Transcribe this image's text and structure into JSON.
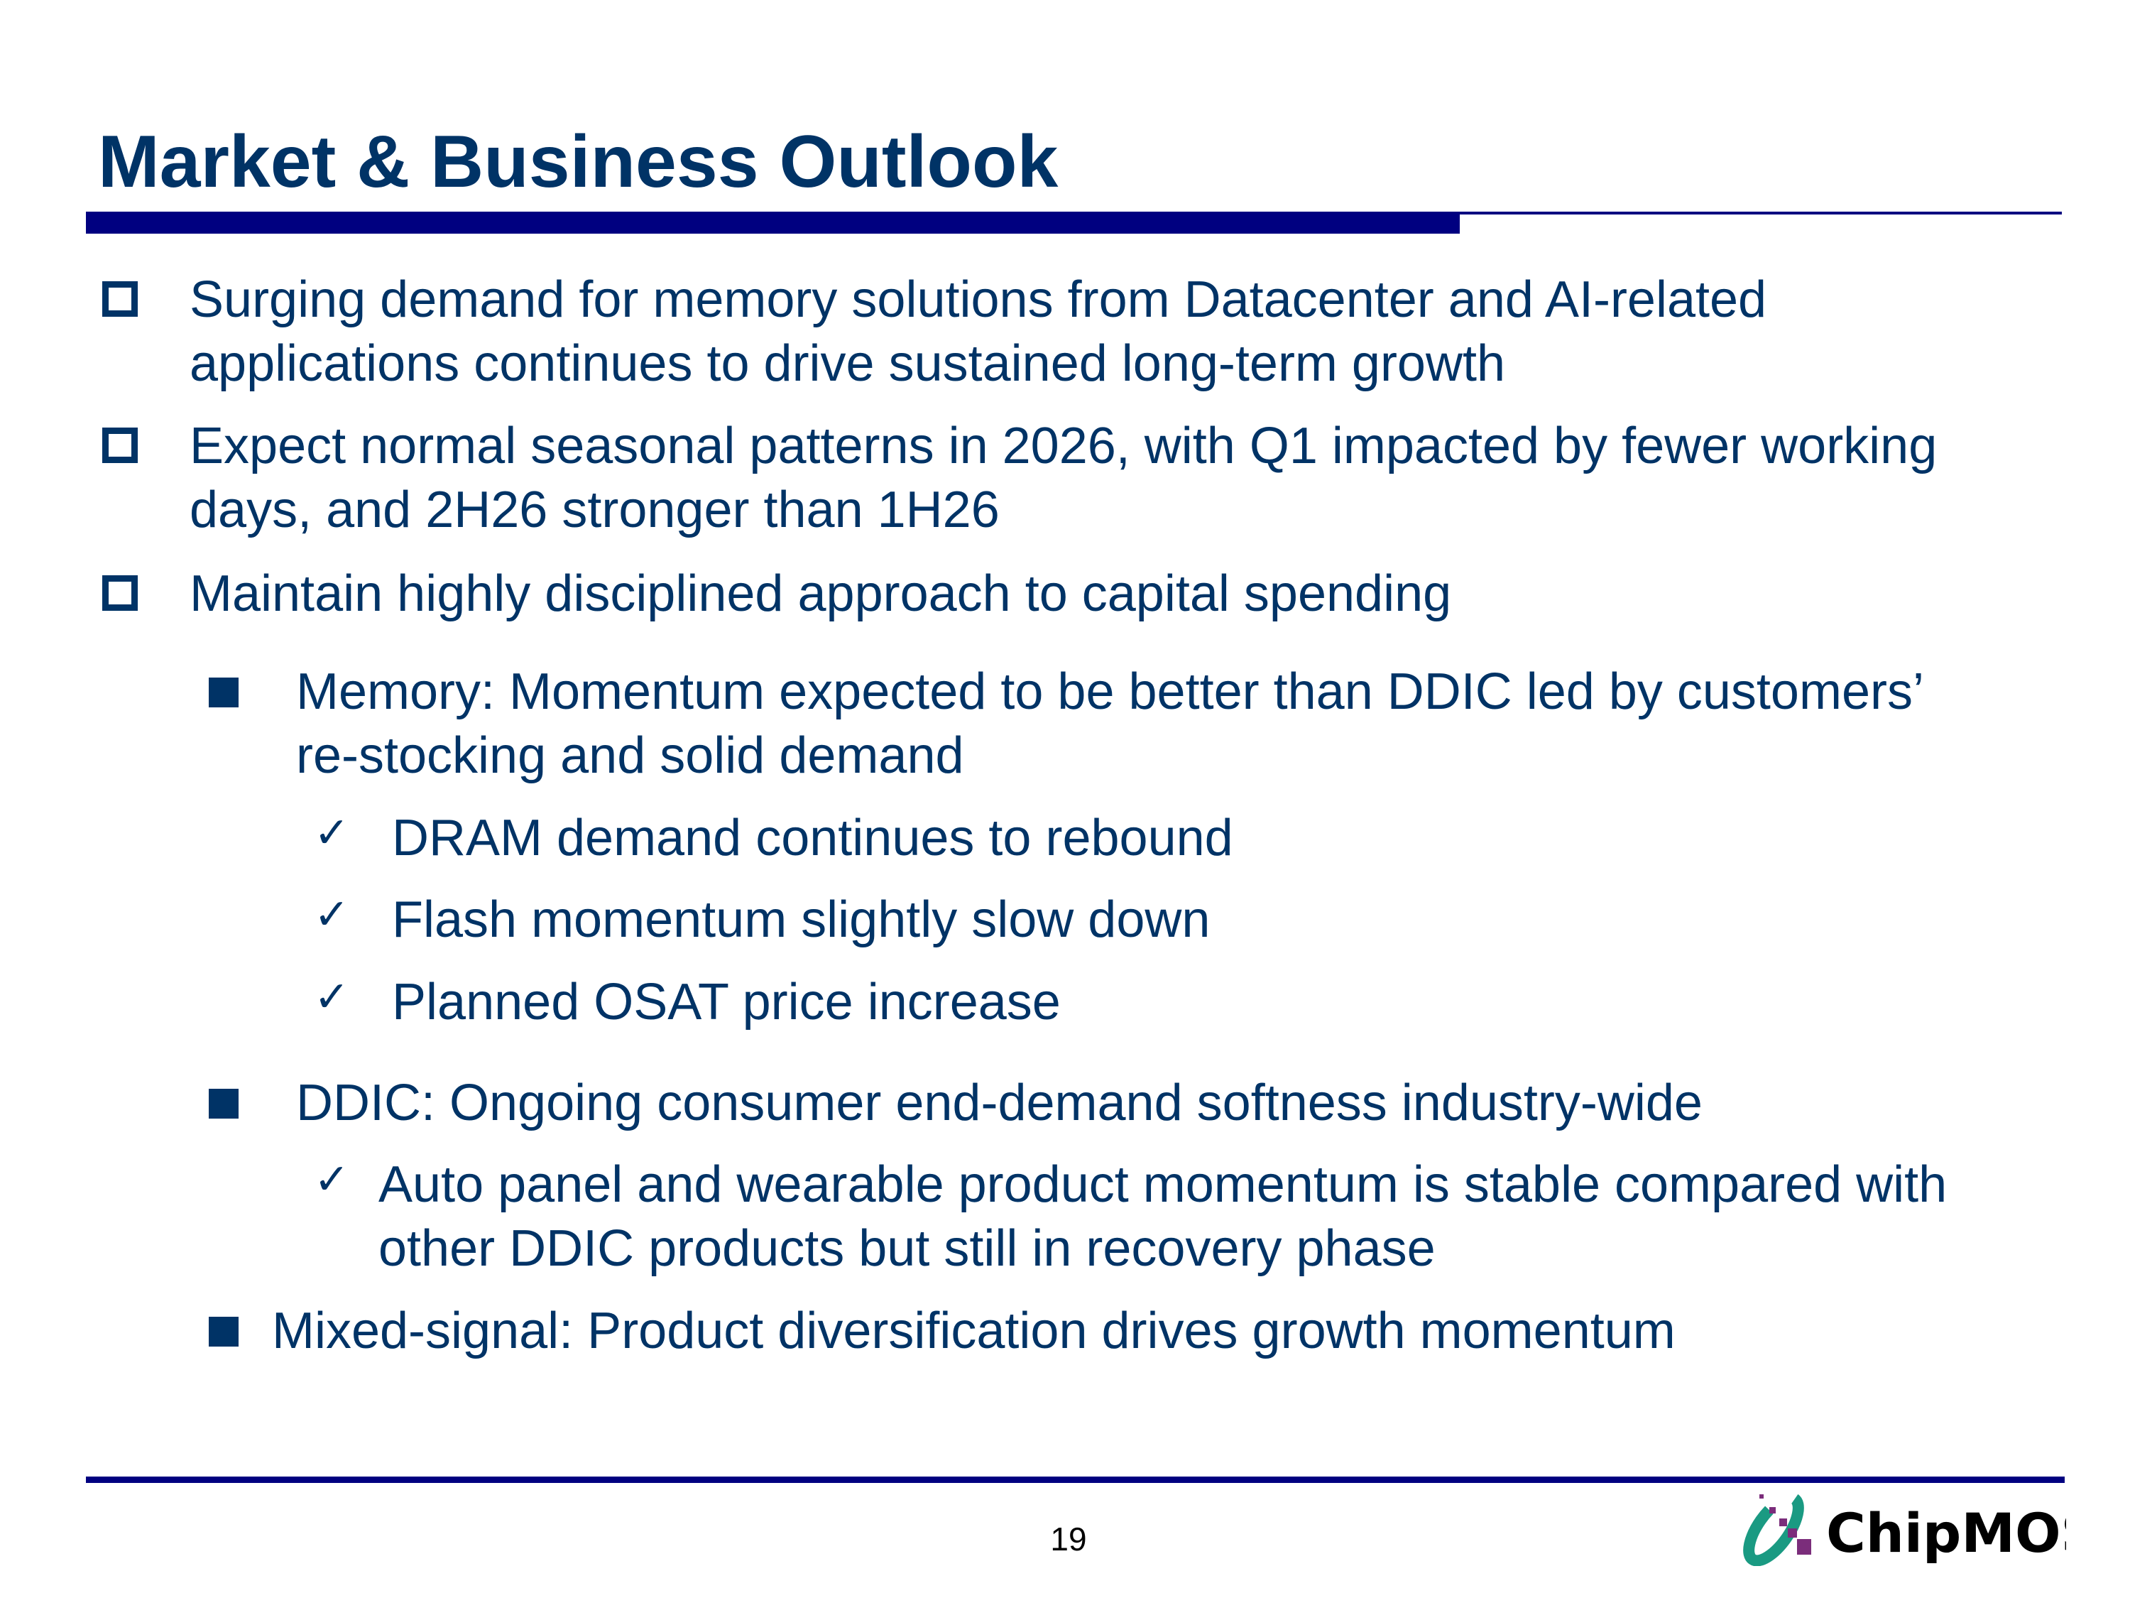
{
  "title": "Market & Business Outlook",
  "colors": {
    "title": "#003366",
    "text": "#003366",
    "rule": "#000080",
    "logo_teal": "#1a9a82",
    "logo_purple": "#7b2d7b"
  },
  "bullets": [
    {
      "level": 1,
      "icon": "hollow-square-icon",
      "lines": [
        "Surging demand for memory solutions from Datacenter and AI-related",
        "applications continues to drive sustained long-term growth"
      ]
    },
    {
      "level": 1,
      "icon": "hollow-square-icon",
      "lines": [
        "Expect normal seasonal patterns in 2026, with Q1 impacted by fewer working",
        "days, and 2H26 stronger than 1H26"
      ]
    },
    {
      "level": 1,
      "icon": "hollow-square-icon",
      "lines": [
        "Maintain highly disciplined approach to capital spending"
      ]
    },
    {
      "level": 2,
      "icon": "filled-square-icon",
      "lines": [
        "Memory: Momentum expected to be better than DDIC led by customers’",
        "re-stocking and solid demand"
      ]
    },
    {
      "level": 3,
      "icon": "checkmark-icon",
      "lines": [
        "DRAM demand continues to rebound"
      ]
    },
    {
      "level": 3,
      "icon": "checkmark-icon",
      "lines": [
        "Flash momentum slightly slow down"
      ]
    },
    {
      "level": 3,
      "icon": "checkmark-icon",
      "lines": [
        "Planned OSAT price increase"
      ]
    },
    {
      "level": 2,
      "icon": "filled-square-icon",
      "lines": [
        "DDIC: Ongoing consumer end-demand softness industry-wide"
      ]
    },
    {
      "level": 3,
      "icon": "checkmark-icon",
      "lines": [
        "Auto panel and wearable product momentum is stable compared with",
        "other DDIC products but still in recovery phase"
      ]
    },
    {
      "level": 2,
      "icon": "filled-square-icon",
      "lines": [
        "Mixed-signal: Product diversification drives growth momentum"
      ]
    }
  ],
  "footer": {
    "page_number": "19",
    "logo_text": "ChipMOS"
  }
}
